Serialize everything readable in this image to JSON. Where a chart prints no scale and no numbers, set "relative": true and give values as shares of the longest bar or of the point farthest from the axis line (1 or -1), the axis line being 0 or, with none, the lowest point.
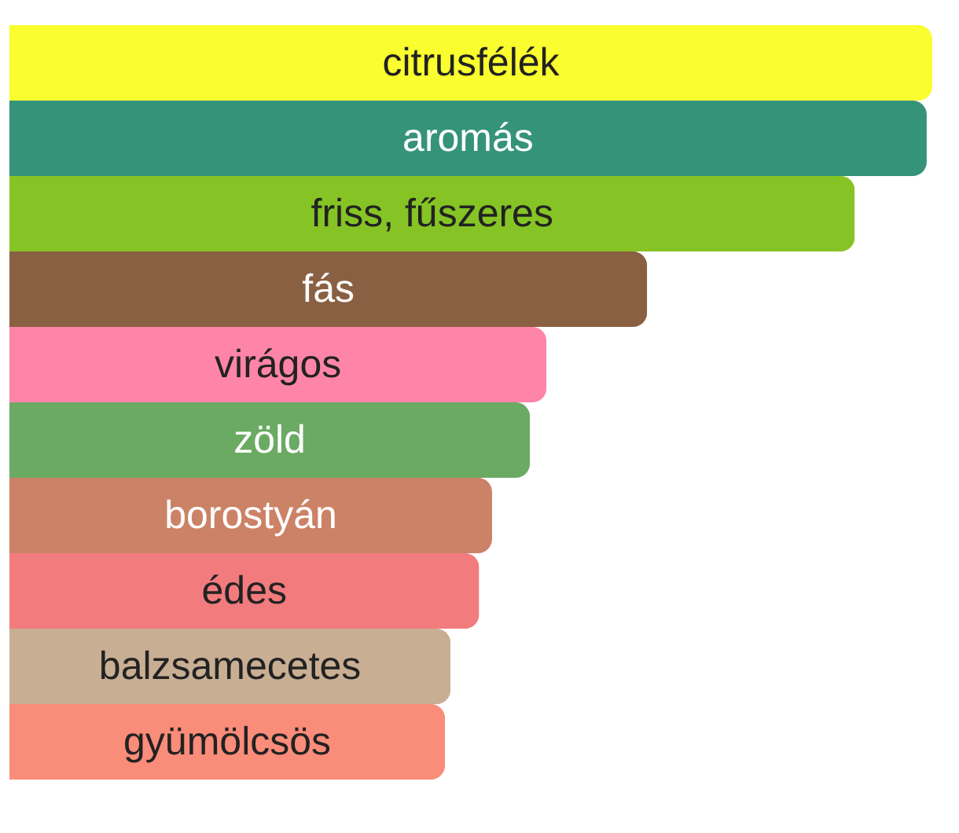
{
  "chart_data": {
    "type": "bar",
    "orientation": "horizontal",
    "relative": true,
    "categories": [
      "citrusfélék",
      "aromás",
      "friss, fűszeres",
      "fás",
      "virágos",
      "zöld",
      "borostyán",
      "édes",
      "balzsamecetes",
      "gyümölcsös"
    ],
    "values": [
      1,
      0.994,
      0.916,
      0.691,
      0.582,
      0.564,
      0.523,
      0.509,
      0.478,
      0.472
    ],
    "colors": [
      "#fafd2e",
      "#35937a",
      "#85c424",
      "#8a6042",
      "#ff85a8",
      "#6baa63",
      "#cc8266",
      "#f27b7e",
      "#c8ae93",
      "#fa8c7a"
    ]
  }
}
